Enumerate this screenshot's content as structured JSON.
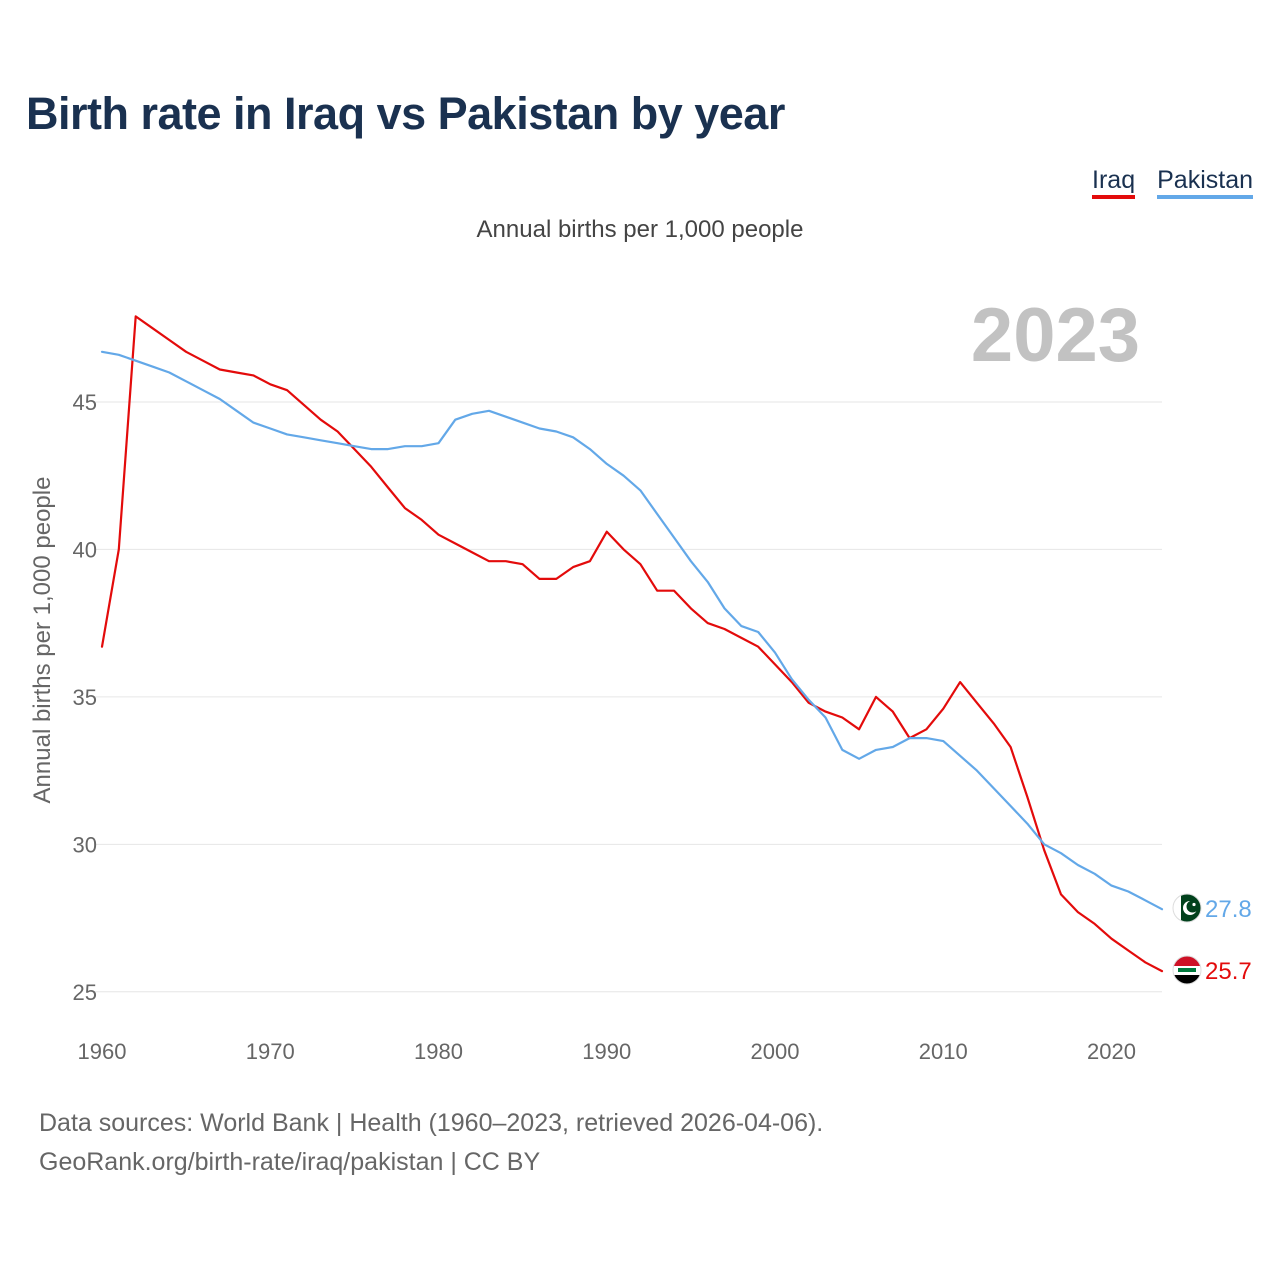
{
  "title": "Birth rate in Iraq vs Pakistan by year",
  "legend": [
    {
      "name": "Iraq",
      "color": "#e30b0b"
    },
    {
      "name": "Pakistan",
      "color": "#63a8e8"
    }
  ],
  "subtitle": "Annual births per 1,000 people",
  "sources": {
    "line1": "Data sources: World Bank | Health (1960–2023, retrieved 2026-04-06).",
    "line2": "GeoRank.org/birth-rate/iraq/pakistan | CC BY"
  },
  "chart_data": {
    "type": "line",
    "title": "Birth rate in Iraq vs Pakistan by year",
    "ylabel": "Annual births per 1,000 people",
    "xlabel": "",
    "year_display": "2023",
    "xlim": [
      1960,
      2023
    ],
    "ylim": [
      23.5,
      49
    ],
    "yticks": [
      25,
      30,
      35,
      40,
      45
    ],
    "xticks": [
      1960,
      1970,
      1980,
      1990,
      2000,
      2010,
      2020
    ],
    "grid": true,
    "legend_position": "top-right",
    "x": [
      1960,
      1961,
      1962,
      1963,
      1964,
      1965,
      1966,
      1967,
      1968,
      1969,
      1970,
      1971,
      1972,
      1973,
      1974,
      1975,
      1976,
      1977,
      1978,
      1979,
      1980,
      1981,
      1982,
      1983,
      1984,
      1985,
      1986,
      1987,
      1988,
      1989,
      1990,
      1991,
      1992,
      1993,
      1994,
      1995,
      1996,
      1997,
      1998,
      1999,
      2000,
      2001,
      2002,
      2003,
      2004,
      2005,
      2006,
      2007,
      2008,
      2009,
      2010,
      2011,
      2012,
      2013,
      2014,
      2015,
      2016,
      2017,
      2018,
      2019,
      2020,
      2021,
      2022,
      2023
    ],
    "series": [
      {
        "name": "Iraq",
        "color": "#e30b0b",
        "end_label": "25.7",
        "values": [
          36.7,
          40.0,
          47.9,
          47.5,
          47.1,
          46.7,
          46.4,
          46.1,
          46.0,
          45.9,
          45.6,
          45.4,
          44.9,
          44.4,
          44.0,
          43.4,
          42.8,
          42.1,
          41.4,
          41.0,
          40.5,
          40.2,
          39.9,
          39.6,
          39.6,
          39.5,
          39.0,
          39.0,
          39.4,
          39.6,
          40.6,
          40.0,
          39.5,
          38.6,
          38.6,
          38.0,
          37.5,
          37.3,
          37.0,
          36.7,
          36.1,
          35.5,
          34.8,
          34.5,
          34.3,
          33.9,
          35.0,
          34.5,
          33.6,
          33.9,
          34.6,
          35.5,
          34.8,
          34.1,
          33.3,
          31.6,
          29.8,
          28.3,
          27.7,
          27.3,
          26.8,
          26.4,
          26.0,
          25.7
        ]
      },
      {
        "name": "Pakistan",
        "color": "#63a8e8",
        "end_label": "27.8",
        "values": [
          46.7,
          46.6,
          46.4,
          46.2,
          46.0,
          45.7,
          45.4,
          45.1,
          44.7,
          44.3,
          44.1,
          43.9,
          43.8,
          43.7,
          43.6,
          43.5,
          43.4,
          43.4,
          43.5,
          43.5,
          43.6,
          44.4,
          44.6,
          44.7,
          44.5,
          44.3,
          44.1,
          44.0,
          43.8,
          43.4,
          42.9,
          42.5,
          42.0,
          41.2,
          40.4,
          39.6,
          38.9,
          38.0,
          37.4,
          37.2,
          36.5,
          35.6,
          34.9,
          34.3,
          33.2,
          32.9,
          33.2,
          33.3,
          33.6,
          33.6,
          33.5,
          33.0,
          32.5,
          31.9,
          31.3,
          30.7,
          30.0,
          29.7,
          29.3,
          29.0,
          28.6,
          28.4,
          28.1,
          27.8
        ]
      }
    ]
  }
}
